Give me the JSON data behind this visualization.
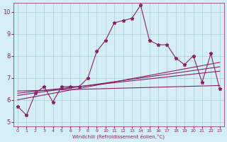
{
  "xlabel": "Windchill (Refroidissement éolien,°C)",
  "xlim": [
    -0.5,
    23.5
  ],
  "ylim": [
    4.8,
    10.4
  ],
  "x_ticks": [
    0,
    1,
    2,
    3,
    4,
    5,
    6,
    7,
    8,
    9,
    10,
    11,
    12,
    13,
    14,
    15,
    16,
    17,
    18,
    19,
    20,
    21,
    22,
    23
  ],
  "y_ticks": [
    5,
    6,
    7,
    8,
    9,
    10
  ],
  "bg_color": "#d4eef4",
  "grid_color": "#aaccdd",
  "line_color": "#882266",
  "main_x": [
    0,
    1,
    2,
    3,
    4,
    5,
    6,
    7,
    8,
    9,
    10,
    11,
    12,
    13,
    14,
    15,
    16,
    17,
    18,
    19,
    20,
    21,
    22,
    23
  ],
  "main_y": [
    5.7,
    5.3,
    6.3,
    6.6,
    5.9,
    6.6,
    6.6,
    6.6,
    7.0,
    8.2,
    8.7,
    9.5,
    9.6,
    9.7,
    10.3,
    8.7,
    8.5,
    8.5,
    7.9,
    7.6,
    8.0,
    6.8,
    8.1,
    6.5
  ],
  "trend_lines": [
    {
      "x": [
        0,
        23
      ],
      "y": [
        6.0,
        7.7
      ]
    },
    {
      "x": [
        0,
        23
      ],
      "y": [
        6.2,
        7.5
      ]
    },
    {
      "x": [
        0,
        23
      ],
      "y": [
        6.3,
        7.3
      ]
    },
    {
      "x": [
        0,
        23
      ],
      "y": [
        6.4,
        6.65
      ]
    }
  ]
}
